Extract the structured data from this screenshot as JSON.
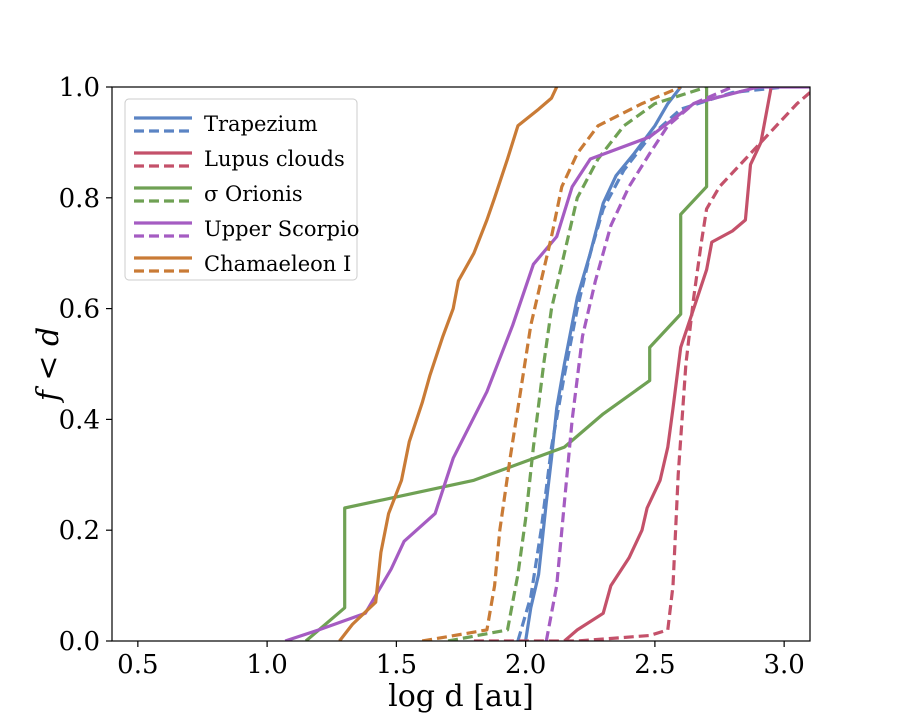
{
  "chart_data": {
    "type": "line",
    "title": "",
    "xlabel": "log d [au]",
    "ylabel": "f < d",
    "xlim": [
      0.4,
      3.1
    ],
    "ylim": [
      0.0,
      1.0
    ],
    "xticks": [
      0.5,
      1.0,
      1.5,
      2.0,
      2.5,
      3.0
    ],
    "xtick_labels": [
      "0.5",
      "1.0",
      "1.5",
      "2.0",
      "2.5",
      "3.0"
    ],
    "yticks": [
      0.0,
      0.2,
      0.4,
      0.6,
      0.8,
      1.0
    ],
    "ytick_labels": [
      "0.0",
      "0.2",
      "0.4",
      "0.6",
      "0.8",
      "1.0"
    ],
    "grid": false,
    "legend_position": "upper-left",
    "legend": [
      {
        "label": "Trapezium",
        "color": "#5b84c4"
      },
      {
        "label": "Lupus clouds",
        "color": "#c4516a"
      },
      {
        "label": "σ Orionis",
        "color": "#6fa154"
      },
      {
        "label": "Upper Scorpio",
        "color": "#a55cc2"
      },
      {
        "label": "Chamaeleon I",
        "color": "#c97b36"
      }
    ],
    "series": [
      {
        "name": "Trapezium",
        "style": "solid",
        "color": "#5b84c4",
        "points": [
          [
            2.0,
            0.0
          ],
          [
            2.02,
            0.06
          ],
          [
            2.05,
            0.12
          ],
          [
            2.08,
            0.25
          ],
          [
            2.1,
            0.33
          ],
          [
            2.12,
            0.42
          ],
          [
            2.15,
            0.5
          ],
          [
            2.2,
            0.62
          ],
          [
            2.25,
            0.7
          ],
          [
            2.3,
            0.79
          ],
          [
            2.35,
            0.84
          ],
          [
            2.42,
            0.88
          ],
          [
            2.5,
            0.93
          ],
          [
            2.55,
            0.97
          ],
          [
            2.6,
            1.0
          ]
        ]
      },
      {
        "name": "Trapezium",
        "style": "dashed",
        "color": "#5b84c4",
        "points": [
          [
            1.97,
            0.0
          ],
          [
            2.02,
            0.08
          ],
          [
            2.06,
            0.2
          ],
          [
            2.1,
            0.35
          ],
          [
            2.15,
            0.48
          ],
          [
            2.2,
            0.6
          ],
          [
            2.25,
            0.7
          ],
          [
            2.3,
            0.78
          ],
          [
            2.38,
            0.85
          ],
          [
            2.48,
            0.91
          ],
          [
            2.6,
            0.96
          ],
          [
            2.8,
            0.99
          ],
          [
            3.0,
            1.0
          ]
        ]
      },
      {
        "name": "Lupus clouds",
        "style": "solid",
        "color": "#c4516a",
        "points": [
          [
            2.15,
            0.0
          ],
          [
            2.2,
            0.02
          ],
          [
            2.3,
            0.05
          ],
          [
            2.33,
            0.1
          ],
          [
            2.4,
            0.15
          ],
          [
            2.45,
            0.2
          ],
          [
            2.47,
            0.24
          ],
          [
            2.52,
            0.29
          ],
          [
            2.55,
            0.35
          ],
          [
            2.57,
            0.42
          ],
          [
            2.6,
            0.53
          ],
          [
            2.65,
            0.6
          ],
          [
            2.7,
            0.67
          ],
          [
            2.72,
            0.72
          ],
          [
            2.8,
            0.74
          ],
          [
            2.85,
            0.76
          ],
          [
            2.87,
            0.86
          ],
          [
            2.91,
            0.9
          ],
          [
            2.95,
            1.0
          ]
        ]
      },
      {
        "name": "Lupus clouds",
        "style": "dashed",
        "color": "#c4516a",
        "points": [
          [
            1.8,
            0.0
          ],
          [
            2.2,
            0.0
          ],
          [
            2.48,
            0.01
          ],
          [
            2.55,
            0.02
          ],
          [
            2.57,
            0.1
          ],
          [
            2.59,
            0.3
          ],
          [
            2.62,
            0.5
          ],
          [
            2.65,
            0.62
          ],
          [
            2.68,
            0.72
          ],
          [
            2.7,
            0.78
          ],
          [
            2.75,
            0.82
          ],
          [
            2.85,
            0.87
          ],
          [
            2.95,
            0.92
          ],
          [
            3.05,
            0.97
          ],
          [
            3.1,
            0.99
          ]
        ]
      },
      {
        "name": "σ Orionis",
        "style": "solid",
        "color": "#6fa154",
        "points": [
          [
            1.15,
            0.0
          ],
          [
            1.3,
            0.06
          ],
          [
            1.3,
            0.24
          ],
          [
            1.8,
            0.29
          ],
          [
            2.15,
            0.35
          ],
          [
            2.3,
            0.41
          ],
          [
            2.48,
            0.47
          ],
          [
            2.48,
            0.53
          ],
          [
            2.6,
            0.59
          ],
          [
            2.6,
            0.77
          ],
          [
            2.7,
            0.82
          ],
          [
            2.7,
            1.0
          ]
        ]
      },
      {
        "name": "σ Orionis",
        "style": "dashed",
        "color": "#6fa154",
        "points": [
          [
            1.7,
            0.0
          ],
          [
            1.93,
            0.02
          ],
          [
            1.97,
            0.12
          ],
          [
            2.0,
            0.22
          ],
          [
            2.03,
            0.35
          ],
          [
            2.07,
            0.5
          ],
          [
            2.1,
            0.6
          ],
          [
            2.15,
            0.7
          ],
          [
            2.2,
            0.8
          ],
          [
            2.28,
            0.87
          ],
          [
            2.38,
            0.93
          ],
          [
            2.5,
            0.97
          ],
          [
            2.7,
            1.0
          ]
        ]
      },
      {
        "name": "Upper Scorpio",
        "style": "solid",
        "color": "#a55cc2",
        "points": [
          [
            1.07,
            0.0
          ],
          [
            1.2,
            0.02
          ],
          [
            1.38,
            0.05
          ],
          [
            1.48,
            0.13
          ],
          [
            1.53,
            0.18
          ],
          [
            1.65,
            0.23
          ],
          [
            1.72,
            0.33
          ],
          [
            1.85,
            0.45
          ],
          [
            1.95,
            0.57
          ],
          [
            2.03,
            0.68
          ],
          [
            2.12,
            0.73
          ],
          [
            2.18,
            0.82
          ],
          [
            2.25,
            0.87
          ],
          [
            2.48,
            0.91
          ],
          [
            2.65,
            0.97
          ],
          [
            2.9,
            1.0
          ],
          [
            3.1,
            1.0
          ]
        ]
      },
      {
        "name": "Upper Scorpio",
        "style": "dashed",
        "color": "#a55cc2",
        "points": [
          [
            2.08,
            0.0
          ],
          [
            2.12,
            0.1
          ],
          [
            2.15,
            0.25
          ],
          [
            2.18,
            0.4
          ],
          [
            2.22,
            0.55
          ],
          [
            2.27,
            0.65
          ],
          [
            2.33,
            0.75
          ],
          [
            2.4,
            0.82
          ],
          [
            2.48,
            0.88
          ],
          [
            2.55,
            0.93
          ],
          [
            2.65,
            0.97
          ],
          [
            2.8,
            1.0
          ]
        ]
      },
      {
        "name": "Chamaeleon I",
        "style": "solid",
        "color": "#c97b36",
        "points": [
          [
            1.28,
            0.0
          ],
          [
            1.33,
            0.03
          ],
          [
            1.42,
            0.07
          ],
          [
            1.44,
            0.16
          ],
          [
            1.47,
            0.23
          ],
          [
            1.52,
            0.29
          ],
          [
            1.55,
            0.36
          ],
          [
            1.6,
            0.43
          ],
          [
            1.63,
            0.48
          ],
          [
            1.68,
            0.55
          ],
          [
            1.72,
            0.6
          ],
          [
            1.74,
            0.65
          ],
          [
            1.8,
            0.7
          ],
          [
            1.85,
            0.76
          ],
          [
            1.88,
            0.8
          ],
          [
            1.93,
            0.87
          ],
          [
            1.97,
            0.93
          ],
          [
            2.05,
            0.96
          ],
          [
            2.1,
            0.98
          ],
          [
            2.12,
            1.0
          ]
        ]
      },
      {
        "name": "Chamaeleon I",
        "style": "dashed",
        "color": "#c97b36",
        "points": [
          [
            1.6,
            0.0
          ],
          [
            1.85,
            0.02
          ],
          [
            1.88,
            0.1
          ],
          [
            1.9,
            0.2
          ],
          [
            1.94,
            0.33
          ],
          [
            1.98,
            0.45
          ],
          [
            2.02,
            0.57
          ],
          [
            2.06,
            0.65
          ],
          [
            2.1,
            0.73
          ],
          [
            2.14,
            0.82
          ],
          [
            2.2,
            0.88
          ],
          [
            2.28,
            0.93
          ],
          [
            2.45,
            0.97
          ],
          [
            2.6,
            1.0
          ]
        ]
      }
    ]
  }
}
